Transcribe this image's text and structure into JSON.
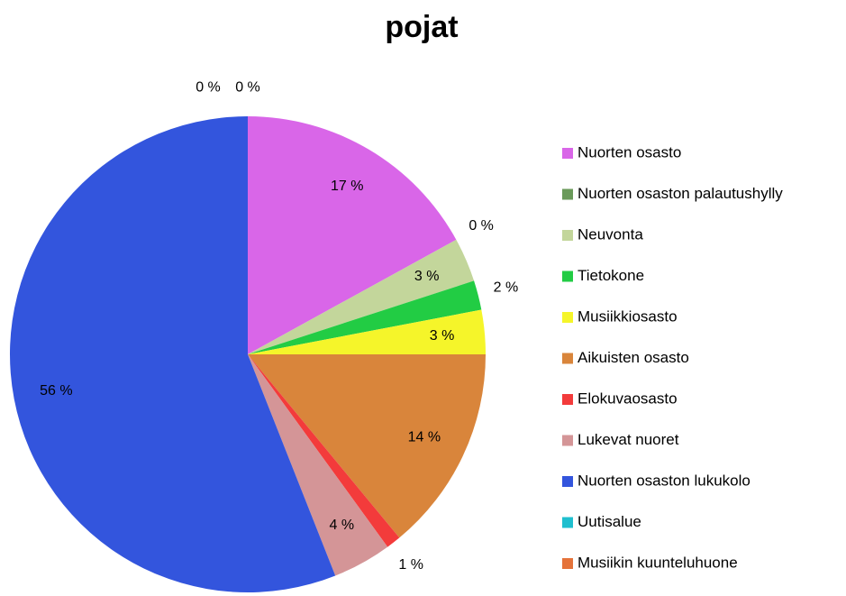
{
  "chart_data": {
    "type": "pie",
    "title": "pojat",
    "categories": [
      "Nuorten osasto",
      "Nuorten osaston  palautushylly",
      "Neuvonta",
      "Tietokone",
      "Musiikkiosasto",
      "Aikuisten osasto",
      "Elokuvaosasto",
      "Lukevat nuoret",
      "Nuorten osaston  lukukolo",
      "Uutisalue",
      "Musiikin kuunteluhuone"
    ],
    "values": [
      17,
      0,
      3,
      2,
      3,
      14,
      1,
      4,
      56,
      0,
      0
    ],
    "value_labels": [
      "17 %",
      "0 %",
      "3 %",
      "2 %",
      "3 %",
      "14 %",
      "1 %",
      "4 %",
      "56 %",
      "0 %",
      "0 %"
    ],
    "colors": [
      "#d966e8",
      "#6a9a5a",
      "#c3d69b",
      "#22cc44",
      "#f5f52a",
      "#d9853b",
      "#f33b3b",
      "#d49597",
      "#3355dd",
      "#1fbfcf",
      "#e5733a"
    ],
    "legend": "right"
  }
}
